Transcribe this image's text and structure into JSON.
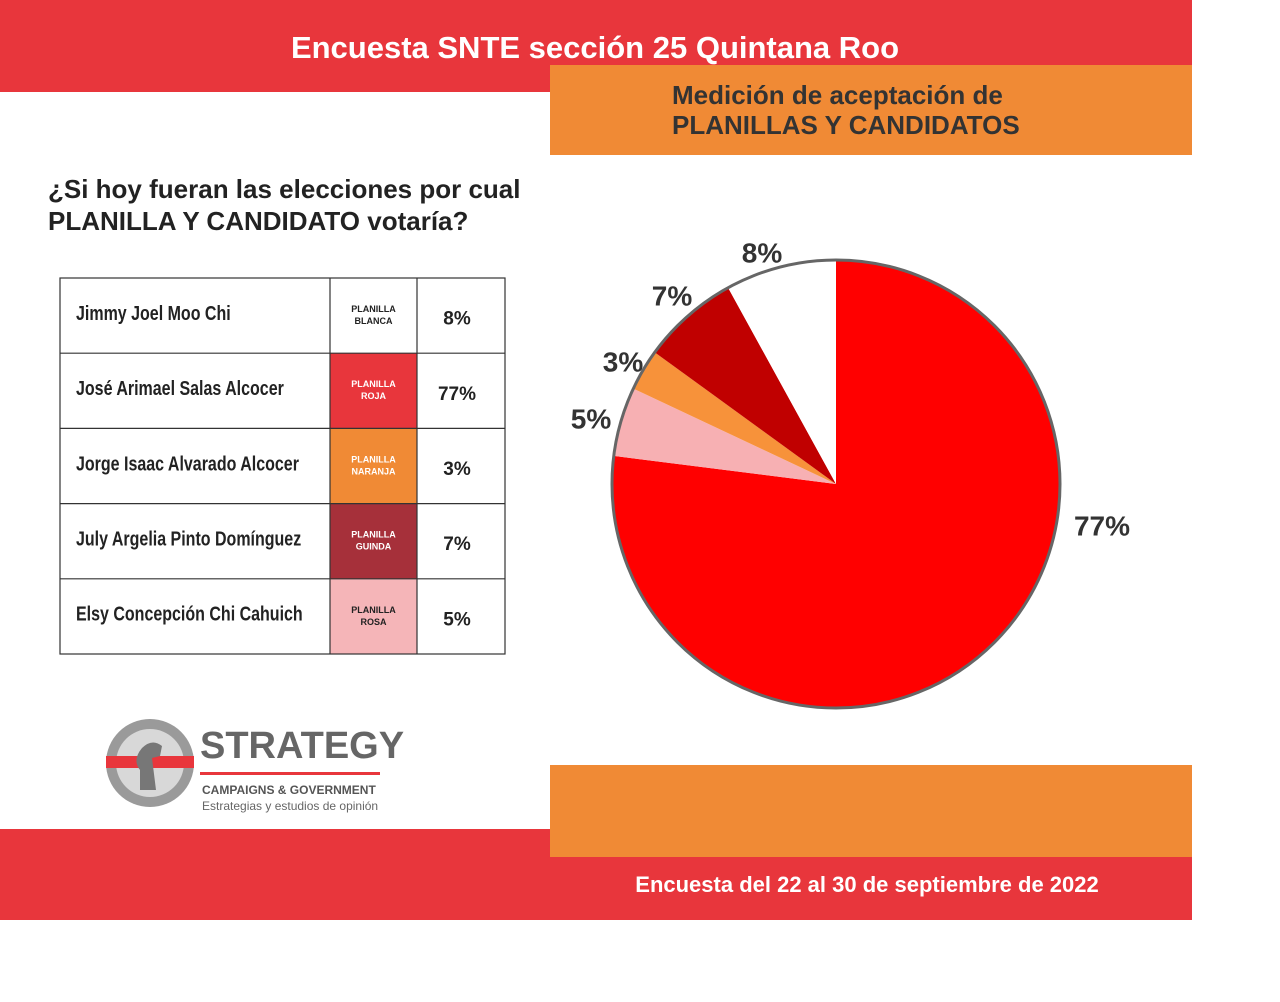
{
  "header": {
    "title": "Encuesta SNTE  sección 25 Quintana Roo",
    "subtitle": [
      "Medición de aceptación de",
      "PLANILLAS Y CANDIDATOS"
    ]
  },
  "question": [
    "¿Si hoy fueran las elecciones por cual",
    "PLANILLA Y CANDIDATO votaría?"
  ],
  "table": {
    "rows": [
      {
        "name": "Jimmy Joel Moo Chi",
        "planilla": [
          "PLANILLA",
          "BLANCA"
        ],
        "percent": "8%",
        "color": "#ffffff"
      },
      {
        "name": "José Arimael Salas Alcocer",
        "planilla": [
          "PLANILLA",
          "ROJA"
        ],
        "percent": "77%",
        "color": "#e8363c"
      },
      {
        "name": "Jorge Isaac Alvarado Alcocer",
        "planilla": [
          "PLANILLA",
          "NARANJA"
        ],
        "percent": "3%",
        "color": "#f08a35"
      },
      {
        "name": "July Argelia Pinto Domínguez",
        "planilla": [
          "PLANILLA",
          "GUINDA"
        ],
        "percent": "7%",
        "color": "#a6303a"
      },
      {
        "name": "Elsy Concepción Chi Cahuich",
        "planilla": [
          "PLANILLA",
          "ROSA"
        ],
        "percent": "5%",
        "color": "#f5b5b8"
      }
    ]
  },
  "chart_data": {
    "type": "pie",
    "values": [
      77,
      5,
      3,
      7,
      8
    ],
    "value_labels": [
      "77%",
      "5%",
      "3%",
      "7%",
      "8%"
    ],
    "colors": [
      "#ff0000",
      "#f7b0b3",
      "#f7923a",
      "#c00000",
      "#ffffff"
    ]
  },
  "logo": {
    "name": "STRATEGY",
    "tagline": "CAMPAIGNS & GOVERNMENT",
    "description": "Estrategias y estudios de opinión"
  },
  "footer": "Encuesta del 22 al 30 de septiembre de 2022"
}
